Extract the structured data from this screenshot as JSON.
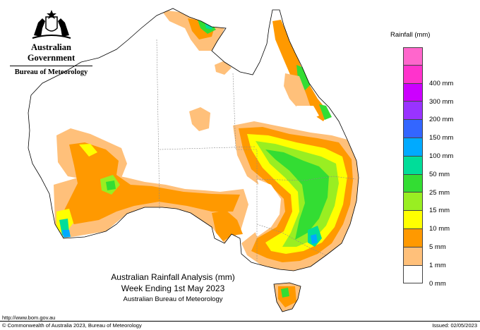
{
  "header": {
    "government": "Australian Government",
    "bureau": "Bureau of Meteorology"
  },
  "legend": {
    "title": "Rainfall (mm)",
    "bins": [
      {
        "label": "",
        "color": "#ff66cc"
      },
      {
        "label": "400 mm",
        "color": "#ff33cc"
      },
      {
        "label": "300 mm",
        "color": "#cc00ff"
      },
      {
        "label": "200 mm",
        "color": "#9933ff"
      },
      {
        "label": "150 mm",
        "color": "#3366ff"
      },
      {
        "label": "100 mm",
        "color": "#00aaff"
      },
      {
        "label": "50 mm",
        "color": "#00dd99"
      },
      {
        "label": "25 mm",
        "color": "#33dd33"
      },
      {
        "label": "15 mm",
        "color": "#99ee22"
      },
      {
        "label": "10 mm",
        "color": "#ffff00"
      },
      {
        "label": "5 mm",
        "color": "#ff9900"
      },
      {
        "label": "1 mm",
        "color": "#ffc07a"
      },
      {
        "label": "0 mm",
        "color": "#ffffff"
      }
    ]
  },
  "map_title": {
    "line1": "Australian Rainfall Analysis (mm)",
    "line2": "Week Ending 1st May 2023",
    "line3": "Australian Bureau of Meteorology"
  },
  "url": "http://www.bom.gov.au",
  "copyright": "© Commonwealth of Australia 2023, Bureau of Meteorology",
  "issued": "Issued: 02/05/2023",
  "colors": {
    "land": "#ffffff",
    "coast": "#000000",
    "state_border": "#888888",
    "light": "#ffc07a",
    "orange": "#ff9900",
    "yellow": "#ffff00",
    "lime": "#99ee22",
    "green": "#33dd33",
    "teal": "#00dd99",
    "blue": "#00aaff"
  }
}
